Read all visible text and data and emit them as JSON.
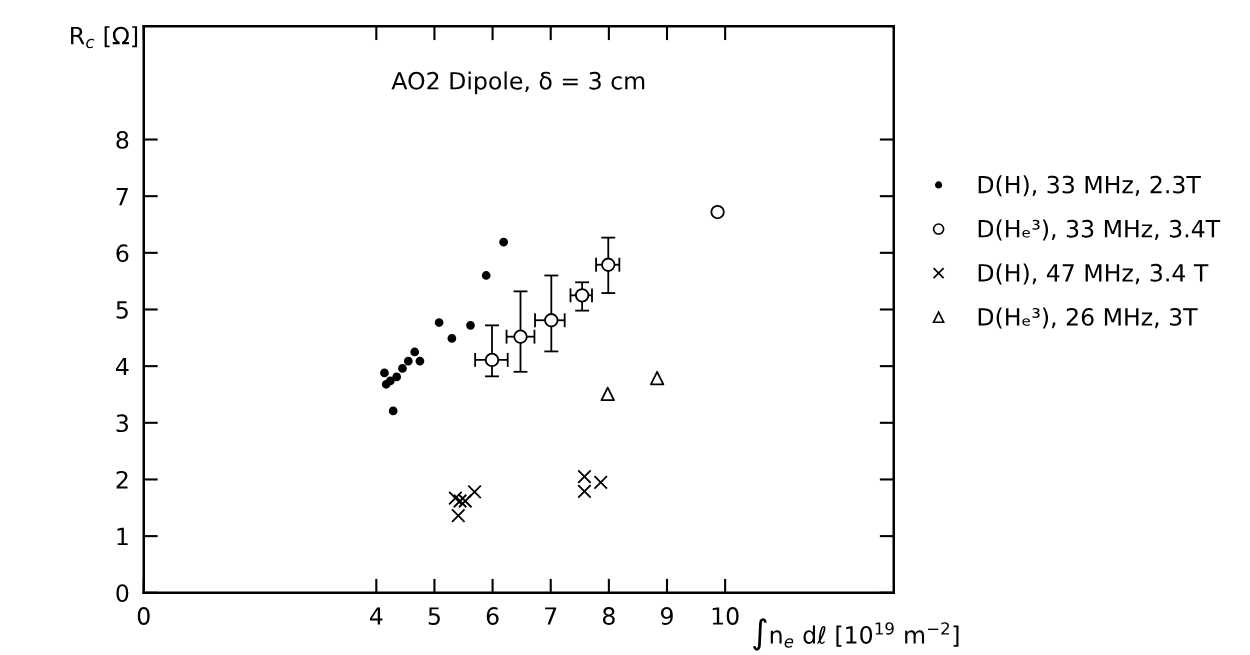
{
  "chart_data": {
    "type": "scatter",
    "title": "AO2 Dipole, δ = 3 cm",
    "xlabel": "∫n$_{e}$ dℓ [10$^{19}$ m$^{−2}$]",
    "ylabel": "R$_{c}$ [Ω]",
    "xlim": [
      0,
      12.9
    ],
    "ylim": [
      0,
      10
    ],
    "xticks": [
      0,
      4,
      5,
      6,
      7,
      8,
      9,
      10
    ],
    "yticks": [
      0,
      1,
      2,
      3,
      4,
      5,
      6,
      7,
      8
    ],
    "grid": false,
    "legend": "right",
    "series": [
      {
        "name": "D(H), 33 MHz, 2.3T",
        "color": "#000000",
        "marker": "circle",
        "x": [
          4.14,
          4.17,
          4.24,
          4.35,
          4.45,
          4.55,
          4.66,
          4.75,
          4.29,
          5.08,
          5.3,
          5.62,
          5.89,
          6.19
        ],
        "values": [
          3.88,
          3.68,
          3.74,
          3.81,
          3.96,
          4.09,
          4.25,
          4.09,
          3.21,
          4.77,
          4.49,
          4.72,
          5.6,
          6.19
        ]
      },
      {
        "name": "D(Hₑ³), 33 MHz, 3.4T",
        "color": "#000000",
        "marker": "circle",
        "x": [
          5.99,
          6.48,
          7.01,
          7.54,
          7.99,
          9.87
        ],
        "values": [
          4.11,
          4.52,
          4.81,
          5.25,
          5.79,
          6.72
        ],
        "errors": [
          [
            3.82,
            4.72
          ],
          [
            3.9,
            5.32
          ],
          [
            4.26,
            5.6
          ],
          [
            4.98,
            5.48
          ],
          [
            5.29,
            6.27
          ],
          null
        ],
        "xerrors": [
          [
            5.7,
            6.26
          ],
          [
            6.24,
            6.72
          ],
          [
            6.73,
            7.24
          ],
          [
            7.34,
            7.71
          ],
          [
            7.78,
            8.18
          ],
          null
        ]
      },
      {
        "name": "D(H), 47 MHz, 3.4 T",
        "color": "#000000",
        "marker": "cross",
        "x": [
          5.36,
          5.44,
          5.53,
          5.41,
          5.69,
          7.58,
          7.58,
          7.86
        ],
        "values": [
          1.67,
          1.62,
          1.62,
          1.36,
          1.78,
          2.05,
          1.79,
          1.95
        ]
      },
      {
        "name": "D(Hₑ³), 26 MHz, 3T",
        "color": "#000000",
        "marker": "triangle",
        "x": [
          7.98,
          8.83
        ],
        "values": [
          3.51,
          3.79
        ]
      }
    ]
  }
}
